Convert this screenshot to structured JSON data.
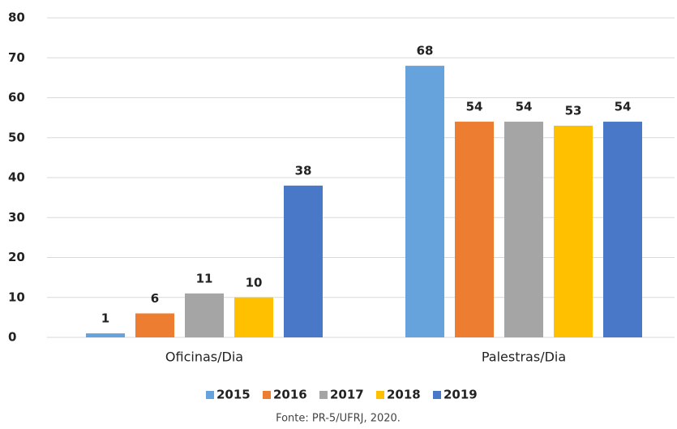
{
  "chart_data": {
    "type": "bar",
    "categories": [
      "Oficinas/Dia",
      "Palestras/Dia"
    ],
    "series": [
      {
        "name": "2015",
        "color": "#66a3dc",
        "values": [
          1,
          68
        ]
      },
      {
        "name": "2016",
        "color": "#ed7d31",
        "values": [
          6,
          54
        ]
      },
      {
        "name": "2017",
        "color": "#a5a5a5",
        "values": [
          11,
          54
        ]
      },
      {
        "name": "2018",
        "color": "#ffc000",
        "values": [
          10,
          53
        ]
      },
      {
        "name": "2019",
        "color": "#4a78c8",
        "values": [
          38,
          54
        ]
      }
    ],
    "ylim": [
      0,
      80
    ],
    "yticks": [
      0,
      10,
      20,
      30,
      40,
      50,
      60,
      70,
      80
    ],
    "grid": true,
    "legend": "bottom",
    "source": "Fonte: PR-5/UFRJ, 2020."
  }
}
